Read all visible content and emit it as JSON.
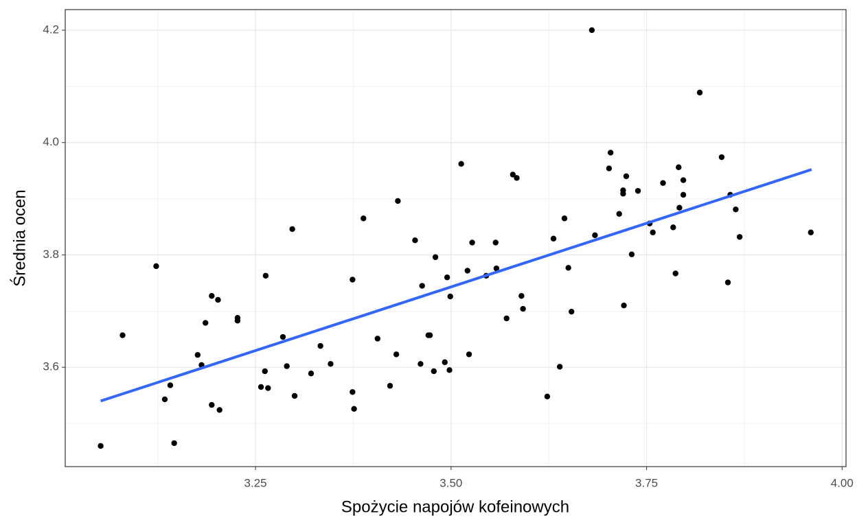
{
  "chart_data": {
    "type": "scatter",
    "x_label": "Spożycie napojów kofeinowych",
    "y_label": "Średnia ocen",
    "xlim": [
      3.0067,
      4.005
    ],
    "ylim": [
      3.4232,
      4.2366
    ],
    "xticks": [
      3.25,
      {
        "value": 3.5,
        "label": "3.50"
      },
      3.75,
      {
        "value": 4,
        "label": "4.00"
      }
    ],
    "yticks": [
      3.6,
      3.8,
      {
        "value": 4,
        "label": "4.0"
      },
      4.2
    ],
    "x_minor_ticks": [
      3.125,
      3.375,
      3.625,
      3.875
    ],
    "y_minor_ticks": [
      3.5,
      3.7,
      3.9,
      4.1
    ],
    "grid": true,
    "point_color": "#000000",
    "x": [
      3.052,
      3.08,
      3.123,
      3.134,
      3.141,
      3.146,
      3.176,
      3.181,
      3.186,
      3.194,
      3.194,
      3.202,
      3.204,
      3.227,
      3.227,
      3.257,
      3.262,
      3.263,
      3.266,
      3.285,
      3.29,
      3.297,
      3.3,
      3.321,
      3.333,
      3.346,
      3.374,
      3.374,
      3.376,
      3.388,
      3.406,
      3.422,
      3.43,
      3.432,
      3.454,
      3.461,
      3.463,
      3.471,
      3.473,
      3.478,
      3.48,
      3.492,
      3.495,
      3.498,
      3.499,
      3.513,
      3.521,
      3.523,
      3.527,
      3.557,
      3.558,
      3.545,
      3.571,
      3.579,
      3.584,
      3.59,
      3.592,
      3.623,
      3.631,
      3.639,
      3.645,
      3.65,
      3.654,
      3.68,
      3.684,
      3.702,
      3.704,
      3.715,
      3.72,
      3.72,
      3.721,
      3.724,
      3.731,
      3.739,
      3.754,
      3.758,
      3.771,
      3.784,
      3.787,
      3.791,
      3.792,
      3.797,
      3.797,
      3.818,
      3.846,
      3.854,
      3.857,
      3.864,
      3.869,
      3.96
    ],
    "y": [
      3.46,
      3.657,
      3.78,
      3.543,
      3.568,
      3.465,
      3.622,
      3.604,
      3.679,
      3.727,
      3.533,
      3.72,
      3.524,
      3.688,
      3.683,
      3.565,
      3.593,
      3.763,
      3.563,
      3.654,
      3.602,
      3.846,
      3.549,
      3.589,
      3.638,
      3.606,
      3.756,
      3.556,
      3.526,
      3.865,
      3.651,
      3.567,
      3.623,
      3.896,
      3.826,
      3.606,
      3.745,
      3.657,
      3.657,
      3.593,
      3.796,
      3.609,
      3.76,
      3.595,
      3.726,
      3.962,
      3.772,
      3.623,
      3.822,
      3.822,
      3.776,
      3.763,
      3.687,
      3.943,
      3.937,
      3.727,
      3.704,
      3.548,
      3.829,
      3.601,
      3.865,
      3.777,
      3.699,
      4.2,
      3.835,
      3.954,
      3.982,
      3.873,
      3.915,
      3.909,
      3.71,
      3.94,
      3.801,
      3.914,
      3.856,
      3.84,
      3.928,
      3.849,
      3.767,
      3.956,
      3.884,
      3.933,
      3.907,
      4.089,
      3.974,
      3.751,
      3.907,
      3.881,
      3.832,
      3.84
    ],
    "fit_line": {
      "color": "#3366FF",
      "x": [
        3.052,
        3.961
      ],
      "y": [
        3.54,
        3.952
      ]
    }
  }
}
